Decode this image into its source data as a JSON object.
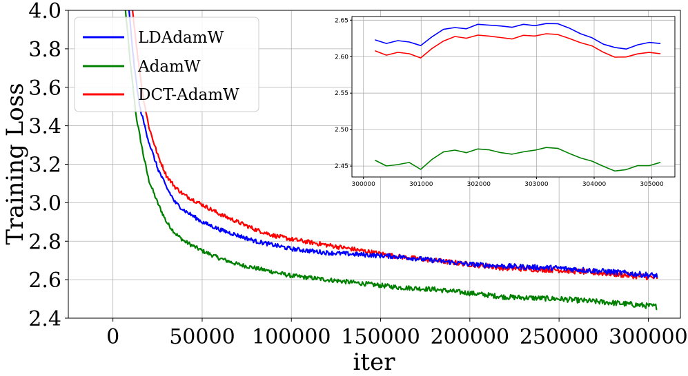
{
  "chart_data": [
    {
      "type": "line",
      "name": "main",
      "title": "",
      "xlabel": "iter",
      "ylabel": "Training Loss",
      "xlim": [
        -25000,
        318000
      ],
      "ylim": [
        2.4,
        4.0
      ],
      "xticks": [
        0,
        50000,
        100000,
        150000,
        200000,
        250000,
        300000
      ],
      "xtick_labels": [
        "0",
        "50000",
        "100000",
        "150000",
        "200000",
        "250000",
        "300000"
      ],
      "yticks": [
        2.4,
        2.6,
        2.8,
        3.0,
        3.2,
        3.4,
        3.6,
        3.8,
        4.0
      ],
      "ytick_labels": [
        "2.4",
        "2.6",
        "2.8",
        "3.0",
        "3.2",
        "3.4",
        "3.6",
        "3.8",
        "4.0"
      ],
      "grid": true,
      "legend": {
        "position": "top-left",
        "entries": [
          "LDAdamW",
          "AdamW",
          "DCT-AdamW"
        ]
      },
      "series": [
        {
          "name": "LDAdamW",
          "color": "#0000ff",
          "x": [
            9000,
            12000,
            15000,
            20000,
            25000,
            30000,
            35000,
            40000,
            50000,
            60000,
            70000,
            80000,
            90000,
            100000,
            120000,
            140000,
            160000,
            180000,
            200000,
            220000,
            250000,
            280000,
            305000
          ],
          "y": [
            4.0,
            3.7,
            3.5,
            3.32,
            3.18,
            3.08,
            3.0,
            2.96,
            2.9,
            2.86,
            2.83,
            2.8,
            2.78,
            2.76,
            2.74,
            2.73,
            2.72,
            2.7,
            2.68,
            2.67,
            2.66,
            2.64,
            2.62
          ]
        },
        {
          "name": "AdamW",
          "color": "#008000",
          "x": [
            7000,
            10000,
            13000,
            17000,
            20000,
            25000,
            30000,
            35000,
            40000,
            50000,
            60000,
            70000,
            80000,
            90000,
            100000,
            120000,
            140000,
            160000,
            180000,
            200000,
            220000,
            250000,
            280000,
            305000
          ],
          "y": [
            4.0,
            3.7,
            3.45,
            3.25,
            3.12,
            3.0,
            2.9,
            2.84,
            2.8,
            2.75,
            2.71,
            2.68,
            2.66,
            2.64,
            2.62,
            2.6,
            2.58,
            2.56,
            2.55,
            2.53,
            2.51,
            2.5,
            2.48,
            2.46
          ]
        },
        {
          "name": "DCT-AdamW",
          "color": "#ff0000",
          "x": [
            11000,
            14000,
            17000,
            20000,
            25000,
            30000,
            35000,
            40000,
            50000,
            60000,
            70000,
            80000,
            90000,
            100000,
            120000,
            140000,
            160000,
            180000,
            200000,
            220000,
            250000,
            280000,
            305000
          ],
          "y": [
            4.0,
            3.75,
            3.55,
            3.4,
            3.25,
            3.14,
            3.08,
            3.04,
            2.99,
            2.94,
            2.9,
            2.86,
            2.83,
            2.81,
            2.78,
            2.75,
            2.72,
            2.7,
            2.68,
            2.66,
            2.65,
            2.63,
            2.61
          ]
        }
      ]
    },
    {
      "type": "line",
      "name": "inset",
      "title": "",
      "xlabel": "",
      "ylabel": "",
      "xlim": [
        299800,
        305400
      ],
      "ylim": [
        2.435,
        2.655
      ],
      "xticks": [
        300000,
        301000,
        302000,
        303000,
        304000,
        305000
      ],
      "xtick_labels": [
        "300000",
        "301000",
        "302000",
        "303000",
        "304000",
        "305000"
      ],
      "yticks": [
        2.45,
        2.5,
        2.55,
        2.6,
        2.65
      ],
      "ytick_labels": [
        "2.45",
        "2.50",
        "2.55",
        "2.60",
        "2.65"
      ],
      "grid": true,
      "series": [
        {
          "name": "LDAdamW",
          "color": "#0000ff",
          "x": [
            300200,
            300400,
            300600,
            300800,
            301000,
            301200,
            301400,
            301600,
            301800,
            302000,
            302200,
            302400,
            302600,
            302800,
            303000,
            303200,
            303400,
            303600,
            303800,
            304000,
            304200,
            304400,
            304600,
            304800,
            305000,
            305150
          ],
          "y": [
            2.623,
            2.618,
            2.622,
            2.62,
            2.615,
            2.628,
            2.638,
            2.64,
            2.638,
            2.645,
            2.643,
            2.642,
            2.64,
            2.645,
            2.642,
            2.646,
            2.645,
            2.638,
            2.63,
            2.625,
            2.615,
            2.612,
            2.61,
            2.618,
            2.62,
            2.618
          ]
        },
        {
          "name": "AdamW",
          "color": "#008000",
          "x": [
            300200,
            300400,
            300600,
            300800,
            301000,
            301200,
            301400,
            301600,
            301800,
            302000,
            302200,
            302400,
            302600,
            302800,
            303000,
            303200,
            303400,
            303600,
            303800,
            304000,
            304200,
            304400,
            304600,
            304800,
            305000,
            305150
          ],
          "y": [
            2.458,
            2.45,
            2.452,
            2.455,
            2.445,
            2.46,
            2.47,
            2.472,
            2.468,
            2.474,
            2.472,
            2.468,
            2.466,
            2.47,
            2.472,
            2.476,
            2.474,
            2.466,
            2.46,
            2.456,
            2.448,
            2.442,
            2.446,
            2.452,
            2.45,
            2.455
          ]
        },
        {
          "name": "DCT-AdamW",
          "color": "#ff0000",
          "x": [
            300200,
            300400,
            300600,
            300800,
            301000,
            301200,
            301400,
            301600,
            301800,
            302000,
            302200,
            302400,
            302600,
            302800,
            303000,
            303200,
            303400,
            303600,
            303800,
            304000,
            304200,
            304400,
            304600,
            304800,
            305000,
            305150
          ],
          "y": [
            2.608,
            2.602,
            2.606,
            2.604,
            2.598,
            2.612,
            2.622,
            2.628,
            2.625,
            2.63,
            2.628,
            2.626,
            2.624,
            2.63,
            2.628,
            2.632,
            2.63,
            2.624,
            2.618,
            2.614,
            2.604,
            2.598,
            2.6,
            2.605,
            2.606,
            2.604
          ]
        }
      ]
    }
  ]
}
